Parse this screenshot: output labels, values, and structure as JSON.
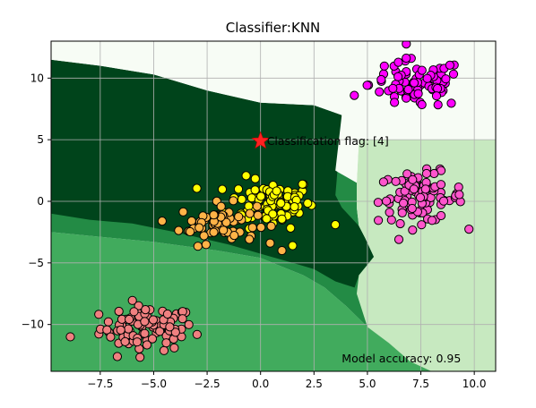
{
  "chart_data": {
    "type": "scatter",
    "title": "Classifier:KNN",
    "xlabel": "",
    "ylabel": "",
    "xlim": [
      -9.8,
      11.0
    ],
    "ylim": [
      -13.8,
      13.0
    ],
    "xticks": [
      -7.5,
      -5.0,
      -2.5,
      0.0,
      2.5,
      5.0,
      7.5,
      10.0
    ],
    "xtick_labels": [
      "−7.5",
      "−5.0",
      "−2.5",
      "0.0",
      "2.5",
      "5.0",
      "7.5",
      "10.0"
    ],
    "yticks": [
      10,
      5,
      0,
      -5,
      -10
    ],
    "ytick_labels": [
      "10",
      "5",
      "0",
      "−5",
      "−10"
    ],
    "grid": true,
    "regions": [
      {
        "class": 0,
        "color": "#41ab5d",
        "polygon": [
          [
            -9.8,
            -2.5
          ],
          [
            -5,
            -3.3
          ],
          [
            -2,
            -4
          ],
          [
            0,
            -4.6
          ],
          [
            1,
            -5.3
          ],
          [
            2,
            -6
          ],
          [
            3,
            -7
          ],
          [
            4,
            -8.5
          ],
          [
            5,
            -10.2
          ],
          [
            6,
            -11.5
          ],
          [
            7,
            -13
          ],
          [
            8,
            -13.8
          ],
          [
            -9.8,
            -13.8
          ]
        ]
      },
      {
        "class": 2,
        "color": "#238b45",
        "polygon": [
          [
            -9.8,
            11.5
          ],
          [
            -9.8,
            -2.5
          ],
          [
            -5,
            -3.3
          ],
          [
            -2,
            -4
          ],
          [
            0,
            -4.6
          ],
          [
            1,
            -5.3
          ],
          [
            2,
            -6
          ],
          [
            3,
            -7
          ],
          [
            4,
            -8.5
          ],
          [
            5,
            -10.2
          ],
          [
            6,
            -11.5
          ],
          [
            7,
            -13
          ],
          [
            8,
            -13.8
          ],
          [
            11,
            -13.8
          ],
          [
            11,
            -12
          ],
          [
            10,
            -10.5
          ],
          [
            9,
            -9
          ],
          [
            8,
            -7.5
          ],
          [
            7.5,
            -6
          ],
          [
            7,
            -5
          ],
          [
            5.3,
            -4.5
          ],
          [
            4.9,
            -3
          ],
          [
            4.6,
            -2
          ],
          [
            4.5,
            -0.5
          ],
          [
            4.5,
            1.5
          ],
          [
            3.5,
            2.5
          ],
          [
            2,
            3.2
          ],
          [
            0,
            5
          ],
          [
            -2,
            6.5
          ],
          [
            -5,
            8.5
          ],
          [
            -7.5,
            10.5
          ]
        ]
      },
      {
        "class": 1,
        "color": "#00441b",
        "polygon": [
          [
            -9.8,
            11.5
          ],
          [
            -7.5,
            11
          ],
          [
            -5,
            10.3
          ],
          [
            -2.5,
            9
          ],
          [
            0,
            8
          ],
          [
            2.5,
            7.8
          ],
          [
            3.8,
            7
          ],
          [
            4,
            4
          ],
          [
            3.6,
            2.5
          ],
          [
            3.5,
            0.5
          ],
          [
            3.8,
            -0.5
          ],
          [
            4.6,
            -2
          ],
          [
            4.9,
            -3
          ],
          [
            5.3,
            -4.5
          ],
          [
            4.6,
            -6
          ],
          [
            4.4,
            -7
          ],
          [
            3.5,
            -6.5
          ],
          [
            2.5,
            -5.5
          ],
          [
            1.5,
            -5
          ],
          [
            0.5,
            -4.5
          ],
          [
            -1.5,
            -3.5
          ],
          [
            -4,
            -2.5
          ],
          [
            -6,
            -1.8
          ],
          [
            -8,
            -1.5
          ],
          [
            -9.8,
            -1
          ]
        ]
      },
      {
        "class": 3,
        "color": "#c7e9c0",
        "polygon": [
          [
            4.6,
            5
          ],
          [
            11,
            5
          ],
          [
            11,
            -13.8
          ],
          [
            8,
            -13.8
          ],
          [
            7,
            -13
          ],
          [
            6,
            -11.5
          ],
          [
            5,
            -10.2
          ],
          [
            4.5,
            -7.5
          ],
          [
            4.6,
            -6
          ],
          [
            5.3,
            -4.5
          ],
          [
            4.9,
            -3
          ],
          [
            4.6,
            -2
          ],
          [
            4.5,
            -0.5
          ],
          [
            4.5,
            1.5
          ]
        ]
      },
      {
        "class": 4,
        "color": "#f7fcf5",
        "polygon": [
          [
            -9.8,
            13
          ],
          [
            11,
            13
          ],
          [
            11,
            5
          ],
          [
            4.6,
            5
          ],
          [
            4.5,
            1.5
          ],
          [
            3.5,
            2.5
          ],
          [
            3.8,
            7
          ],
          [
            2.5,
            7.8
          ],
          [
            0,
            8
          ],
          [
            -2.5,
            9
          ],
          [
            -5,
            10.3
          ],
          [
            -7.5,
            11
          ],
          [
            -9.8,
            11.5
          ],
          [
            -9.8,
            13
          ]
        ]
      }
    ],
    "clusters": [
      {
        "class": 0,
        "color": "#f08080",
        "center": [
          -5.3,
          -10.3
        ],
        "spread": [
          1.1,
          0.9
        ],
        "count": 90
      },
      {
        "class": 1,
        "color": "#ffff00",
        "center": [
          0.5,
          -0.1
        ],
        "spread": [
          1.0,
          1.0
        ],
        "count": 95
      },
      {
        "class": 2,
        "color": "#ffb347",
        "center": [
          -2.0,
          -1.8
        ],
        "spread": [
          0.9,
          0.8
        ],
        "count": 60
      },
      {
        "class": 3,
        "color": "#ff55cc",
        "center": [
          7.5,
          0.3
        ],
        "spread": [
          1.0,
          1.0
        ],
        "count": 90
      },
      {
        "class": 4,
        "color": "#ff00ff",
        "center": [
          7.3,
          9.5
        ],
        "spread": [
          1.1,
          1.0
        ],
        "count": 90
      }
    ],
    "extra_points": [
      {
        "x": -8.9,
        "y": -11.0,
        "color": "#f08080"
      },
      {
        "x": -6.7,
        "y": -12.6,
        "color": "#f08080"
      },
      {
        "x": 3.5,
        "y": -1.9,
        "color": "#ffff00"
      },
      {
        "x": 1.0,
        "y": -4.0,
        "color": "#ffb347"
      },
      {
        "x": 1.5,
        "y": -3.6,
        "color": "#ffff00"
      }
    ],
    "query_point": {
      "x": 0.0,
      "y": 4.9,
      "color": "#ff2222",
      "label": "Classification flag: [4]"
    },
    "annotation": {
      "text": "Model accuracy: 0.95",
      "x": 3.8,
      "y": -12.8
    }
  }
}
